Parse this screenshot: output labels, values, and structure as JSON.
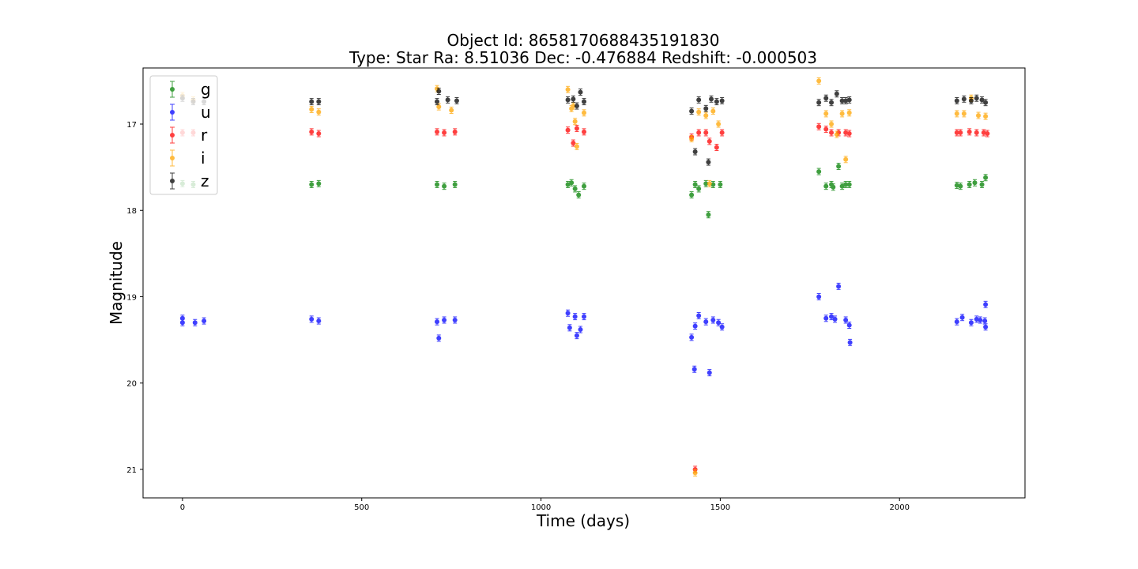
{
  "chart_data": {
    "type": "scatter",
    "title_line1": "Object Id: 8658170688435191830",
    "title_line2": "Type: Star  Ra: 8.51036 Dec: -0.476884  Redshift: -0.000503",
    "xlabel": "Time (days)",
    "ylabel": "Magnitude",
    "xlim": [
      -110,
      2350
    ],
    "ylim": [
      21.33,
      16.35
    ],
    "y_inverted": true,
    "x_ticks": [
      0,
      500,
      1000,
      1500,
      2000
    ],
    "x_tick_labels": [
      "0",
      "500",
      "1000",
      "1500",
      "2000"
    ],
    "y_ticks": [
      17,
      18,
      19,
      20,
      21
    ],
    "y_tick_labels": [
      "17",
      "18",
      "19",
      "20",
      "21"
    ],
    "grid": false,
    "legend_position": "top-left",
    "series": [
      {
        "name": "g",
        "color": "#008000",
        "points": [
          [
            0,
            17.69
          ],
          [
            30,
            17.7
          ],
          [
            360,
            17.7
          ],
          [
            380,
            17.69
          ],
          [
            710,
            17.7
          ],
          [
            730,
            17.72
          ],
          [
            760,
            17.7
          ],
          [
            1075,
            17.7
          ],
          [
            1085,
            17.68
          ],
          [
            1095,
            17.75
          ],
          [
            1105,
            17.82
          ],
          [
            1120,
            17.72
          ],
          [
            1420,
            17.82
          ],
          [
            1430,
            17.7
          ],
          [
            1440,
            17.75
          ],
          [
            1460,
            17.69
          ],
          [
            1467,
            18.05
          ],
          [
            1480,
            17.7
          ],
          [
            1500,
            17.7
          ],
          [
            1775,
            17.55
          ],
          [
            1795,
            17.72
          ],
          [
            1810,
            17.7
          ],
          [
            1815,
            17.73
          ],
          [
            1830,
            17.49
          ],
          [
            1840,
            17.72
          ],
          [
            1850,
            17.7
          ],
          [
            1860,
            17.7
          ],
          [
            2160,
            17.71
          ],
          [
            2170,
            17.72
          ],
          [
            2195,
            17.7
          ],
          [
            2210,
            17.68
          ],
          [
            2230,
            17.7
          ],
          [
            2240,
            17.62
          ]
        ]
      },
      {
        "name": "u",
        "color": "#0000ff",
        "points": [
          [
            0,
            19.25
          ],
          [
            0,
            19.3
          ],
          [
            35,
            19.3
          ],
          [
            60,
            19.28
          ],
          [
            360,
            19.26
          ],
          [
            380,
            19.28
          ],
          [
            710,
            19.29
          ],
          [
            730,
            19.27
          ],
          [
            760,
            19.27
          ],
          [
            715,
            19.48
          ],
          [
            1075,
            19.19
          ],
          [
            1080,
            19.36
          ],
          [
            1095,
            19.23
          ],
          [
            1100,
            19.45
          ],
          [
            1110,
            19.38
          ],
          [
            1120,
            19.23
          ],
          [
            1420,
            19.47
          ],
          [
            1428,
            19.84
          ],
          [
            1430,
            19.34
          ],
          [
            1440,
            19.22
          ],
          [
            1460,
            19.29
          ],
          [
            1470,
            19.88
          ],
          [
            1480,
            19.27
          ],
          [
            1495,
            19.3
          ],
          [
            1505,
            19.35
          ],
          [
            1775,
            19.0
          ],
          [
            1795,
            19.25
          ],
          [
            1810,
            19.23
          ],
          [
            1820,
            19.26
          ],
          [
            1830,
            18.88
          ],
          [
            1850,
            19.27
          ],
          [
            1860,
            19.33
          ],
          [
            1862,
            19.53
          ],
          [
            2160,
            19.29
          ],
          [
            2175,
            19.24
          ],
          [
            2200,
            19.3
          ],
          [
            2215,
            19.26
          ],
          [
            2225,
            19.27
          ],
          [
            2238,
            19.28
          ],
          [
            2240,
            19.09
          ],
          [
            2240,
            19.35
          ]
        ]
      },
      {
        "name": "r",
        "color": "#ff0000",
        "points": [
          [
            0,
            17.1
          ],
          [
            30,
            17.1
          ],
          [
            360,
            17.09
          ],
          [
            380,
            17.11
          ],
          [
            710,
            17.09
          ],
          [
            730,
            17.1
          ],
          [
            760,
            17.09
          ],
          [
            1075,
            17.07
          ],
          [
            1090,
            17.22
          ],
          [
            1100,
            17.05
          ],
          [
            1120,
            17.09
          ],
          [
            1420,
            17.15
          ],
          [
            1430,
            21.0
          ],
          [
            1440,
            17.1
          ],
          [
            1460,
            17.1
          ],
          [
            1470,
            17.2
          ],
          [
            1490,
            17.27
          ],
          [
            1505,
            17.1
          ],
          [
            1775,
            17.03
          ],
          [
            1795,
            17.06
          ],
          [
            1810,
            17.1
          ],
          [
            1830,
            17.1
          ],
          [
            1850,
            17.1
          ],
          [
            1860,
            17.11
          ],
          [
            2160,
            17.1
          ],
          [
            2170,
            17.1
          ],
          [
            2195,
            17.09
          ],
          [
            2215,
            17.1
          ],
          [
            2235,
            17.1
          ],
          [
            2245,
            17.11
          ]
        ]
      },
      {
        "name": "i",
        "color": "#ffa500",
        "points": [
          [
            0,
            16.67
          ],
          [
            30,
            16.72
          ],
          [
            360,
            16.83
          ],
          [
            380,
            16.86
          ],
          [
            710,
            16.59
          ],
          [
            715,
            16.8
          ],
          [
            750,
            16.84
          ],
          [
            1075,
            16.6
          ],
          [
            1085,
            16.82
          ],
          [
            1090,
            16.79
          ],
          [
            1095,
            16.97
          ],
          [
            1100,
            17.26
          ],
          [
            1120,
            16.87
          ],
          [
            1420,
            17.17
          ],
          [
            1430,
            21.04
          ],
          [
            1440,
            16.86
          ],
          [
            1460,
            16.9
          ],
          [
            1470,
            17.69
          ],
          [
            1480,
            16.85
          ],
          [
            1495,
            17.0
          ],
          [
            1775,
            16.5
          ],
          [
            1795,
            16.88
          ],
          [
            1810,
            17.0
          ],
          [
            1825,
            17.12
          ],
          [
            1840,
            16.88
          ],
          [
            1850,
            17.41
          ],
          [
            1860,
            16.87
          ],
          [
            2160,
            16.88
          ],
          [
            2180,
            16.88
          ],
          [
            2200,
            16.7
          ],
          [
            2220,
            16.9
          ],
          [
            2240,
            16.91
          ]
        ]
      },
      {
        "name": "z",
        "color": "#000000",
        "points": [
          [
            0,
            16.7
          ],
          [
            30,
            16.74
          ],
          [
            60,
            16.74
          ],
          [
            360,
            16.74
          ],
          [
            380,
            16.74
          ],
          [
            710,
            16.74
          ],
          [
            715,
            16.62
          ],
          [
            740,
            16.72
          ],
          [
            765,
            16.73
          ],
          [
            1075,
            16.72
          ],
          [
            1090,
            16.71
          ],
          [
            1100,
            16.79
          ],
          [
            1110,
            16.63
          ],
          [
            1120,
            16.74
          ],
          [
            1420,
            16.85
          ],
          [
            1430,
            17.32
          ],
          [
            1440,
            16.72
          ],
          [
            1460,
            16.82
          ],
          [
            1467,
            17.44
          ],
          [
            1475,
            16.71
          ],
          [
            1490,
            16.74
          ],
          [
            1505,
            16.73
          ],
          [
            1775,
            16.75
          ],
          [
            1795,
            16.7
          ],
          [
            1810,
            16.75
          ],
          [
            1825,
            16.65
          ],
          [
            1840,
            16.73
          ],
          [
            1850,
            16.73
          ],
          [
            1860,
            16.72
          ],
          [
            2160,
            16.73
          ],
          [
            2180,
            16.71
          ],
          [
            2200,
            16.73
          ],
          [
            2215,
            16.7
          ],
          [
            2230,
            16.72
          ],
          [
            2240,
            16.75
          ]
        ]
      }
    ]
  }
}
